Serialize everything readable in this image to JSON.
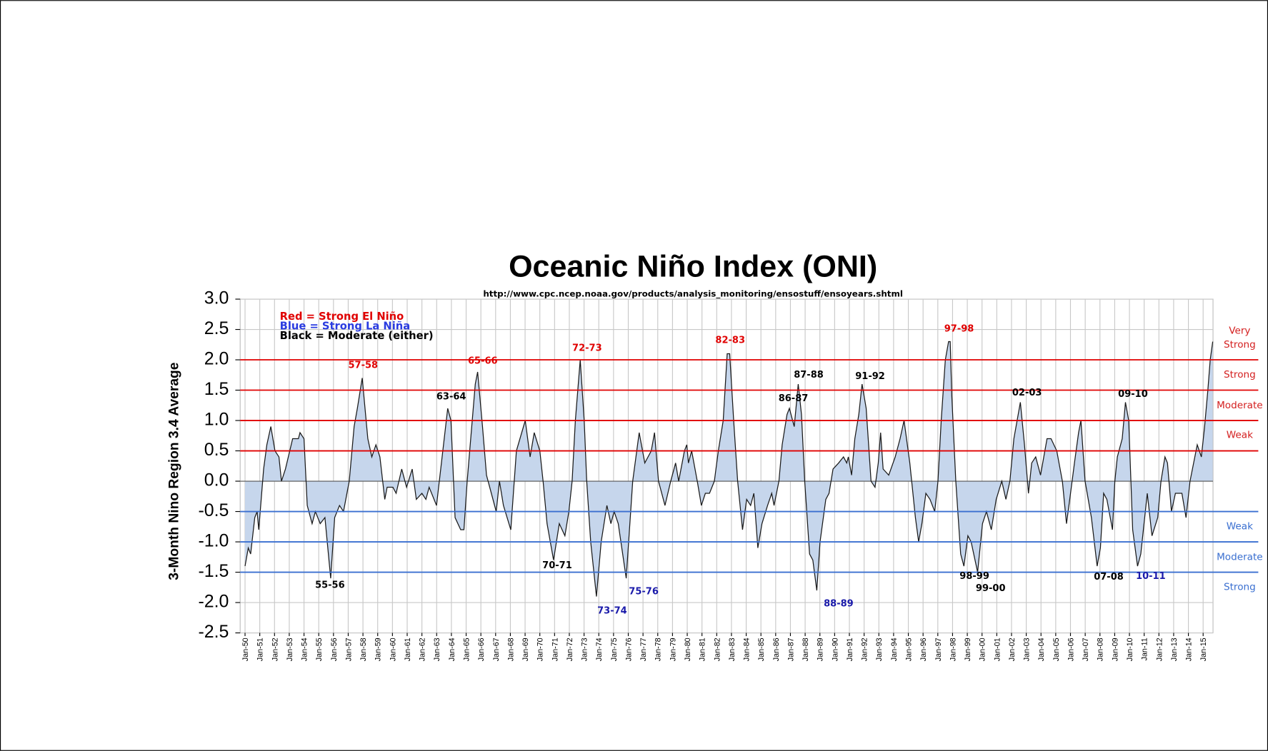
{
  "chart_data": {
    "type": "area",
    "title": "Oceanic Niño Index (ONI)",
    "subtitle": "http://www.cpc.ncep.noaa.gov/products/analysis_monitoring/ensostuff/ensoyears.shtml",
    "y_label": "3-Month Nino Region 3.4 Average",
    "color": "#c6d6ec",
    "line_color": "#1a1a1a",
    "grid": true,
    "xlim": [
      1949.67,
      2015.67
    ],
    "ylim": [
      -2.5,
      3.0
    ],
    "yticks": [
      {
        "value": 3,
        "label": "3.0"
      },
      2.5,
      {
        "value": 2,
        "label": "2.0"
      },
      1.5,
      {
        "value": 1,
        "label": "1.0"
      },
      0.5,
      {
        "value": 0,
        "label": "0.0"
      },
      -0.5,
      {
        "value": -1,
        "label": "-1.0"
      },
      -1.5,
      {
        "value": -2,
        "label": "-2.0"
      },
      -2.5
    ],
    "xticks": [
      {
        "value": 1950,
        "label": "Jan-50"
      },
      {
        "value": 1951,
        "label": "Jan-51"
      },
      {
        "value": 1952,
        "label": "Jan-52"
      },
      {
        "value": 1953,
        "label": "Jan-53"
      },
      {
        "value": 1954,
        "label": "Jan-54"
      },
      {
        "value": 1955,
        "label": "Jan-55"
      },
      {
        "value": 1956,
        "label": "Jan-56"
      },
      {
        "value": 1957,
        "label": "Jan-57"
      },
      {
        "value": 1958,
        "label": "Jan-58"
      },
      {
        "value": 1959,
        "label": "Jan-59"
      },
      {
        "value": 1960,
        "label": "Jan-60"
      },
      {
        "value": 1961,
        "label": "Jan-61"
      },
      {
        "value": 1962,
        "label": "Jan-62"
      },
      {
        "value": 1963,
        "label": "Jan-63"
      },
      {
        "value": 1964,
        "label": "Jan-64"
      },
      {
        "value": 1965,
        "label": "Jan-65"
      },
      {
        "value": 1966,
        "label": "Jan-66"
      },
      {
        "value": 1967,
        "label": "Jan-67"
      },
      {
        "value": 1968,
        "label": "Jan-68"
      },
      {
        "value": 1969,
        "label": "Jan-69"
      },
      {
        "value": 1970,
        "label": "Jan-70"
      },
      {
        "value": 1971,
        "label": "Jan-71"
      },
      {
        "value": 1972,
        "label": "Jan-72"
      },
      {
        "value": 1973,
        "label": "Jan-73"
      },
      {
        "value": 1974,
        "label": "Jan-74"
      },
      {
        "value": 1975,
        "label": "Jan-75"
      },
      {
        "value": 1976,
        "label": "Jan-76"
      },
      {
        "value": 1977,
        "label": "Jan-77"
      },
      {
        "value": 1978,
        "label": "Jan-78"
      },
      {
        "value": 1979,
        "label": "Jan-79"
      },
      {
        "value": 1980,
        "label": "Jan-80"
      },
      {
        "value": 1981,
        "label": "Jan-81"
      },
      {
        "value": 1982,
        "label": "Jan-82"
      },
      {
        "value": 1983,
        "label": "Jan-83"
      },
      {
        "value": 1984,
        "label": "Jan-84"
      },
      {
        "value": 1985,
        "label": "Jan-85"
      },
      {
        "value": 1986,
        "label": "Jan-86"
      },
      {
        "value": 1987,
        "label": "Jan-87"
      },
      {
        "value": 1988,
        "label": "Jan-88"
      },
      {
        "value": 1989,
        "label": "Jan-89"
      },
      {
        "value": 1990,
        "label": "Jan-90"
      },
      {
        "value": 1991,
        "label": "Jan-91"
      },
      {
        "value": 1992,
        "label": "Jan-92"
      },
      {
        "value": 1993,
        "label": "Jan-93"
      },
      {
        "value": 1994,
        "label": "Jan-94"
      },
      {
        "value": 1995,
        "label": "Jan-95"
      },
      {
        "value": 1996,
        "label": "Jan-96"
      },
      {
        "value": 1997,
        "label": "Jan-97"
      },
      {
        "value": 1998,
        "label": "Jan-98"
      },
      {
        "value": 1999,
        "label": "Jan-99"
      },
      {
        "value": 2000,
        "label": "Jan-00"
      },
      {
        "value": 2001,
        "label": "Jan-01"
      },
      {
        "value": 2002,
        "label": "Jan-02"
      },
      {
        "value": 2003,
        "label": "Jan-03"
      },
      {
        "value": 2004,
        "label": "Jan-04"
      },
      {
        "value": 2005,
        "label": "Jan-05"
      },
      {
        "value": 2006,
        "label": "Jan-06"
      },
      {
        "value": 2007,
        "label": "Jan-07"
      },
      {
        "value": 2008,
        "label": "Jan-08"
      },
      {
        "value": 2009,
        "label": "Jan-09"
      },
      {
        "value": 2010,
        "label": "Jan-10"
      },
      {
        "value": 2011,
        "label": "Jan-11"
      },
      {
        "value": 2012,
        "label": "Jan-12"
      },
      {
        "value": 2013,
        "label": "Jan-13"
      },
      {
        "value": 2014,
        "label": "Jan-14"
      },
      {
        "value": 2015,
        "label": "Jan-15"
      }
    ],
    "x": [
      1950.0,
      1950.22,
      1950.38,
      1950.66,
      1950.82,
      1950.93,
      1951.26,
      1951.48,
      1951.75,
      1952.03,
      1952.3,
      1952.47,
      1952.74,
      1953.23,
      1953.62,
      1953.73,
      1954.0,
      1954.22,
      1954.55,
      1954.77,
      1955.1,
      1955.42,
      1955.81,
      1956.08,
      1956.41,
      1956.68,
      1957.07,
      1957.4,
      1957.62,
      1957.95,
      1958.33,
      1958.6,
      1958.88,
      1959.15,
      1959.48,
      1959.64,
      1960.03,
      1960.25,
      1960.63,
      1960.96,
      1961.34,
      1961.62,
      1962.0,
      1962.27,
      1962.49,
      1962.99,
      1963.75,
      1963.97,
      1964.25,
      1964.63,
      1964.85,
      1965.07,
      1965.62,
      1965.78,
      1966.11,
      1966.38,
      1966.71,
      1967.04,
      1967.26,
      1967.53,
      1968.03,
      1968.41,
      1969.01,
      1969.34,
      1969.62,
      1970.0,
      1970.22,
      1970.49,
      1970.93,
      1971.32,
      1971.7,
      1971.97,
      1972.19,
      1972.41,
      1972.74,
      1973.01,
      1973.18,
      1973.45,
      1973.84,
      1974.16,
      1974.55,
      1974.82,
      1975.04,
      1975.32,
      1975.86,
      1976.19,
      1976.3,
      1976.74,
      1977.12,
      1977.56,
      1977.78,
      1978.05,
      1978.49,
      1978.88,
      1979.21,
      1979.42,
      1979.81,
      1979.97,
      1980.08,
      1980.3,
      1980.68,
      1980.96,
      1981.23,
      1981.51,
      1981.84,
      1982.11,
      1982.44,
      1982.71,
      1982.88,
      1983.15,
      1983.42,
      1983.75,
      1984.03,
      1984.3,
      1984.52,
      1984.79,
      1985.07,
      1985.45,
      1985.73,
      1985.89,
      1986.22,
      1986.44,
      1986.77,
      1986.93,
      1987.26,
      1987.53,
      1987.75,
      1987.97,
      1988.3,
      1988.52,
      1988.79,
      1989.01,
      1989.4,
      1989.62,
      1989.89,
      1990.27,
      1990.6,
      1990.82,
      1990.93,
      1991.15,
      1991.37,
      1991.64,
      1991.86,
      1992.14,
      1992.47,
      1992.74,
      1992.96,
      1993.12,
      1993.29,
      1993.67,
      1994.11,
      1994.44,
      1994.71,
      1995.1,
      1995.48,
      1995.7,
      1995.92,
      1996.19,
      1996.47,
      1996.79,
      1997.01,
      1997.23,
      1997.51,
      1997.73,
      1997.84,
      1997.95,
      1998.22,
      1998.55,
      1998.77,
      1999.04,
      1999.26,
      1999.7,
      2000.03,
      2000.3,
      2000.63,
      2000.96,
      2001.34,
      2001.62,
      2001.89,
      2002.16,
      2002.6,
      2002.88,
      2003.15,
      2003.37,
      2003.64,
      2003.97,
      2004.41,
      2004.68,
      2005.07,
      2005.45,
      2005.73,
      2005.95,
      2006.27,
      2006.55,
      2006.71,
      2006.99,
      2007.42,
      2007.81,
      2008.03,
      2008.25,
      2008.47,
      2008.85,
      2009.01,
      2009.18,
      2009.51,
      2009.73,
      2009.95,
      2010.22,
      2010.55,
      2010.77,
      2011.21,
      2011.53,
      2011.92,
      2012.14,
      2012.41,
      2012.58,
      2012.85,
      2013.12,
      2013.56,
      2013.84,
      2014.11,
      2014.6,
      2014.88,
      2015.1,
      2015.32,
      2015.48,
      2015.65
    ],
    "values": [
      -1.4,
      -1.1,
      -1.2,
      -0.6,
      -0.5,
      -0.8,
      0.2,
      0.6,
      0.9,
      0.5,
      0.4,
      0.0,
      0.2,
      0.7,
      0.7,
      0.8,
      0.7,
      -0.4,
      -0.7,
      -0.5,
      -0.7,
      -0.6,
      -1.6,
      -0.6,
      -0.4,
      -0.5,
      0.0,
      0.9,
      1.2,
      1.7,
      0.7,
      0.4,
      0.6,
      0.4,
      -0.3,
      -0.1,
      -0.1,
      -0.2,
      0.2,
      -0.1,
      0.2,
      -0.3,
      -0.2,
      -0.3,
      -0.1,
      -0.4,
      1.2,
      1.0,
      -0.6,
      -0.8,
      -0.8,
      0.0,
      1.6,
      1.8,
      0.9,
      0.1,
      -0.2,
      -0.5,
      0.0,
      -0.4,
      -0.8,
      0.5,
      1.0,
      0.4,
      0.8,
      0.5,
      0.0,
      -0.7,
      -1.3,
      -0.7,
      -0.9,
      -0.5,
      0.0,
      1.0,
      2.0,
      1.0,
      0.0,
      -1.0,
      -1.9,
      -1.0,
      -0.4,
      -0.7,
      -0.5,
      -0.7,
      -1.6,
      -0.4,
      0.0,
      0.8,
      0.3,
      0.5,
      0.8,
      0.0,
      -0.4,
      0.0,
      0.3,
      0.0,
      0.5,
      0.6,
      0.3,
      0.5,
      0.0,
      -0.4,
      -0.2,
      -0.2,
      0.0,
      0.5,
      1.0,
      2.1,
      2.1,
      1.0,
      0.0,
      -0.8,
      -0.3,
      -0.4,
      -0.2,
      -1.1,
      -0.7,
      -0.4,
      -0.2,
      -0.4,
      0.0,
      0.6,
      1.1,
      1.2,
      0.9,
      1.6,
      1.1,
      0.0,
      -1.2,
      -1.3,
      -1.8,
      -1.0,
      -0.3,
      -0.2,
      0.2,
      0.3,
      0.4,
      0.3,
      0.4,
      0.1,
      0.7,
      1.1,
      1.6,
      1.2,
      0.0,
      -0.1,
      0.3,
      0.8,
      0.2,
      0.1,
      0.4,
      0.7,
      1.0,
      0.3,
      -0.6,
      -1.0,
      -0.7,
      -0.2,
      -0.3,
      -0.5,
      0.0,
      1.0,
      2.0,
      2.3,
      2.3,
      1.4,
      0.0,
      -1.2,
      -1.4,
      -0.9,
      -1.0,
      -1.5,
      -0.7,
      -0.5,
      -0.8,
      -0.3,
      0.0,
      -0.3,
      0.0,
      0.7,
      1.3,
      0.6,
      -0.2,
      0.3,
      0.4,
      0.1,
      0.7,
      0.7,
      0.5,
      0.0,
      -0.7,
      -0.3,
      0.3,
      0.8,
      1.0,
      0.0,
      -0.6,
      -1.4,
      -1.1,
      -0.2,
      -0.3,
      -0.8,
      0.0,
      0.4,
      0.7,
      1.3,
      1.0,
      -0.8,
      -1.4,
      -1.2,
      -0.2,
      -0.9,
      -0.6,
      0.0,
      0.4,
      0.3,
      -0.5,
      -0.2,
      -0.2,
      -0.6,
      0.0,
      0.6,
      0.4,
      0.9,
      1.5,
      2.0,
      2.3
    ],
    "el_nino": {
      "color": "#e00000",
      "label_color": "#d42020",
      "levels": [
        0.5,
        1.0,
        1.5,
        2.0
      ],
      "labels": [
        "Weak",
        "Moderate",
        "Strong",
        "Very Strong"
      ]
    },
    "la_nina": {
      "color": "#3a6fd0",
      "label_color": "#3a6fd0",
      "levels": [
        -0.5,
        -1.0,
        -1.5
      ],
      "labels": [
        "Weak",
        "Moderate",
        "Strong"
      ]
    },
    "key": [
      {
        "text": "Red = Strong El Niño",
        "color": "#e00000"
      },
      {
        "text": "Blue = Strong La Niña",
        "color": "#2a3ce0"
      },
      {
        "text": "Black = Moderate (either)",
        "color": "#000000"
      }
    ],
    "annotations": [
      {
        "text": "57-58",
        "color": "#e00000"
      },
      {
        "text": "65-66",
        "color": "#e00000"
      },
      {
        "text": "72-73",
        "color": "#e00000"
      },
      {
        "text": "82-83",
        "color": "#e00000"
      },
      {
        "text": "97-98",
        "color": "#e00000"
      },
      {
        "text": "63-64",
        "color": "#000000"
      },
      {
        "text": "87-88",
        "color": "#000000"
      },
      {
        "text": "86-87",
        "color": "#000000"
      },
      {
        "text": "91-92",
        "color": "#000000"
      },
      {
        "text": "02-03",
        "color": "#000000"
      },
      {
        "text": "09-10",
        "color": "#000000"
      },
      {
        "text": "55-56",
        "color": "#000000"
      },
      {
        "text": "70-71",
        "color": "#000000"
      },
      {
        "text": "73-74",
        "color": "#1a1aaa"
      },
      {
        "text": "75-76",
        "color": "#1a1aaa"
      },
      {
        "text": "88-89",
        "color": "#1a1aaa"
      },
      {
        "text": "98-99",
        "color": "#000000"
      },
      {
        "text": "99-00",
        "color": "#000000"
      },
      {
        "text": "07-08",
        "color": "#000000"
      },
      {
        "text": "10-11",
        "color": "#1a1aaa"
      }
    ]
  }
}
